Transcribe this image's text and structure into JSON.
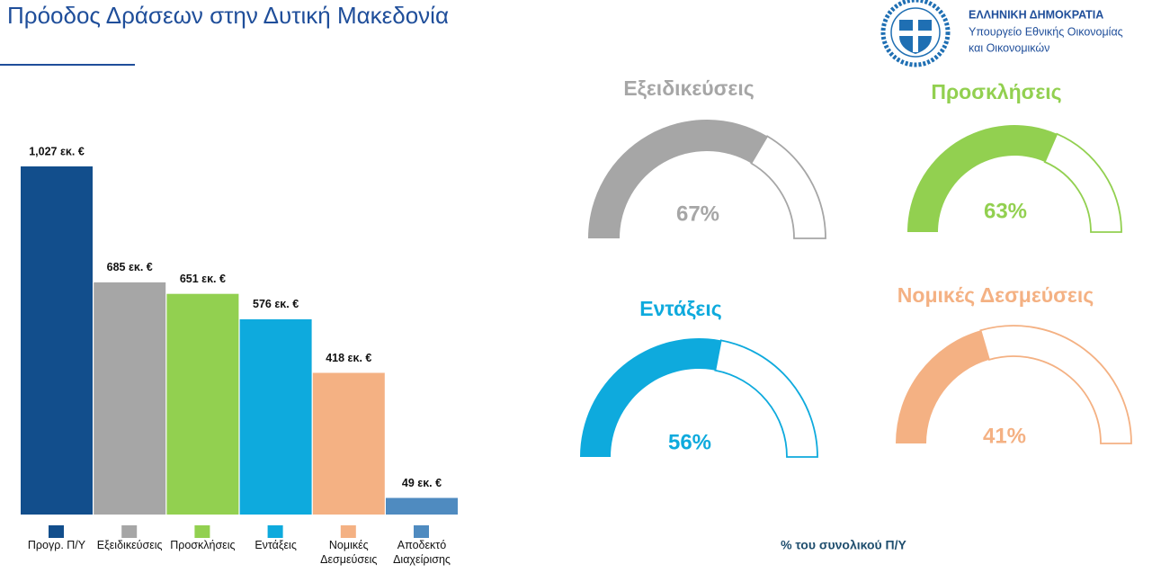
{
  "header": {
    "title": "Πρόοδος Δράσεων στην Δυτική Μακεδονία",
    "org": [
      "ΕΛΛΗΝΙΚΗ ΔΗΜΟΚΡΑΤΙΑ",
      "Υπουργείο Εθνικής Οικονομίας",
      "και Οικονομικών"
    ]
  },
  "chart_data": [
    {
      "type": "bar",
      "categories": [
        "Προγρ. Π/Υ",
        "Εξειδικεύσεις",
        "Προσκλήσεις",
        "Εντάξεις",
        "Νομικές Δεσμεύσεις",
        "Αποδεκτό Διαχείρισης"
      ],
      "values": [
        1027,
        685,
        651,
        576,
        418,
        49
      ],
      "value_labels": [
        "1,027 εκ. €",
        "685 εκ. €",
        "651 εκ. €",
        "576 εκ. €",
        "418 εκ. €",
        "49 εκ. €"
      ],
      "colors": [
        "#124e8c",
        "#a6a6a6",
        "#92d050",
        "#0eaadd",
        "#f4b183",
        "#4f8bc0"
      ]
    },
    {
      "type": "gauge",
      "categories": [
        "Εξειδικεύσεις",
        "Προσκλήσεις",
        "Εντάξεις",
        "Νομικές Δεσμεύσεις"
      ],
      "values": [
        67,
        63,
        56,
        41
      ],
      "value_labels": [
        "67%",
        "63%",
        "56%",
        "41%"
      ],
      "colors": [
        "#a6a6a6",
        "#92d050",
        "#0eaadd",
        "#f4b183"
      ],
      "ylim": [
        0,
        100
      ],
      "caption": "% του συνολικού Π/Υ"
    }
  ]
}
